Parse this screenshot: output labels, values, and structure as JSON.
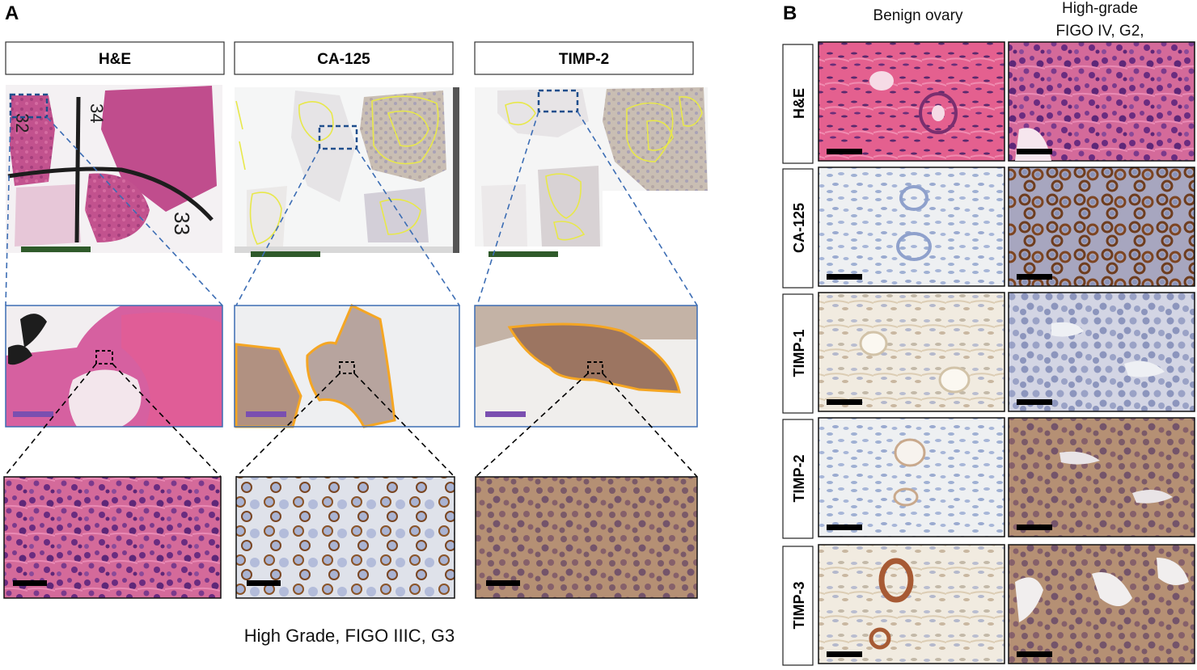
{
  "panel_a": {
    "letter": "A",
    "stains": [
      "H&E",
      "CA-125",
      "TIMP-2"
    ],
    "slide_numbers": [
      "32",
      "34",
      "33"
    ],
    "caption": "High Grade, FIGO IIIC, G3"
  },
  "panel_b": {
    "letter": "B",
    "columns": [
      "Benign ovary",
      "High-grade",
      "FIGO IV, G2,"
    ],
    "rows": [
      "H&E",
      "CA-125",
      "TIMP-1",
      "TIMP-2",
      "TIMP-3"
    ]
  },
  "colors": {
    "he_pink": "#d9709e",
    "he_purple": "#8a3f8f",
    "ihc_blue": "#a9b7d6",
    "ihc_brown": "#8a5a3a",
    "annotation_yellow": "#e8e84a",
    "roi_orange": "#f5a623",
    "box_blue": "#1f4e8c",
    "scale_green": "#2f5a2a",
    "scale_purple": "#7a4fb0",
    "scale_black": "#000000"
  }
}
